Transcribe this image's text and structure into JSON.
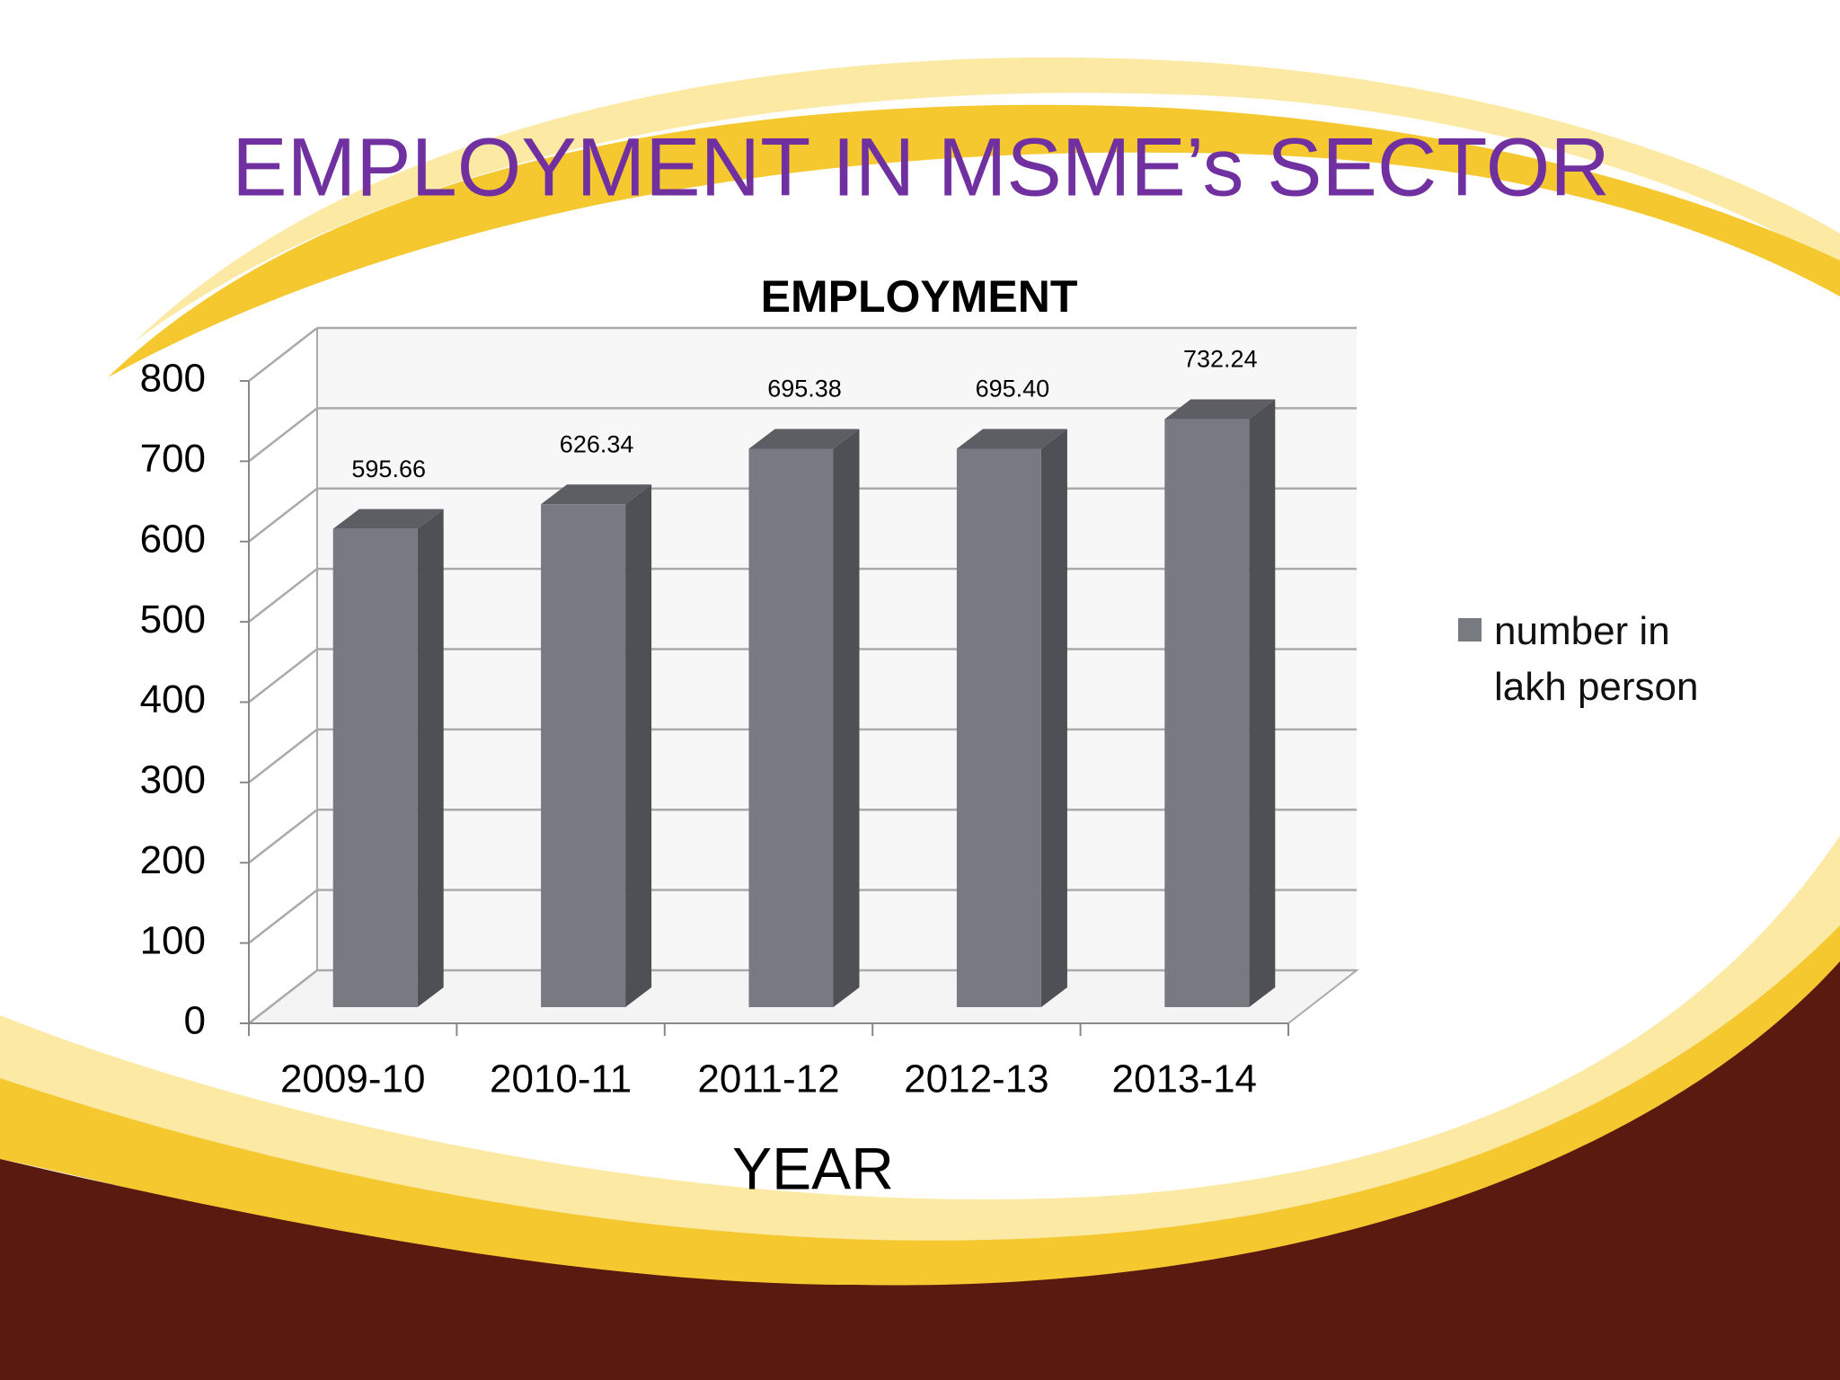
{
  "title": "EMPLOYMENT IN MSME’s SECTOR",
  "chart_data": {
    "type": "bar3d",
    "title": "EMPLOYMENT",
    "xlabel": "YEAR",
    "categories": [
      "2009-10",
      "2010-11",
      "2011-12",
      "2012-13",
      "2013-14"
    ],
    "series": [
      {
        "name": "number in lakh person",
        "color": "#787a82",
        "values": [
          595.66,
          626.34,
          695.38,
          695.4,
          732.24
        ],
        "value_labels": [
          "595.66",
          "626.34",
          "695.38",
          "695.40",
          "732.24"
        ]
      }
    ],
    "ylim": [
      0,
      800
    ],
    "yticks": [
      0,
      100,
      200,
      300,
      400,
      500,
      600,
      700,
      800
    ],
    "grid": true,
    "legend": "right"
  }
}
